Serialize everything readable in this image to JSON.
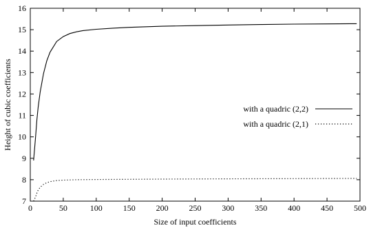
{
  "chart_data": {
    "type": "line",
    "title": "",
    "xlabel": "Size of input coefficients",
    "ylabel": "Height of cubic coefficients",
    "xlim": [
      0,
      500
    ],
    "ylim": [
      7,
      16
    ],
    "xticks": [
      0,
      50,
      100,
      150,
      200,
      250,
      300,
      350,
      400,
      450,
      500
    ],
    "yticks": [
      7,
      8,
      9,
      10,
      11,
      12,
      13,
      14,
      15,
      16
    ],
    "grid": false,
    "legend_position": "right",
    "series": [
      {
        "name": "with a quadric (2,2)",
        "style": "solid",
        "color": "#000000",
        "x": [
          5,
          8,
          10,
          12,
          15,
          20,
          25,
          30,
          40,
          50,
          60,
          70,
          80,
          100,
          125,
          150,
          200,
          250,
          300,
          350,
          400,
          450,
          495
        ],
        "y": [
          8.9,
          10.0,
          10.8,
          11.4,
          12.1,
          12.95,
          13.55,
          13.95,
          14.45,
          14.68,
          14.82,
          14.9,
          14.96,
          15.02,
          15.07,
          15.11,
          15.16,
          15.19,
          15.22,
          15.24,
          15.26,
          15.27,
          15.28
        ]
      },
      {
        "name": "with a quadric (2,1)",
        "style": "dotted",
        "color": "#000000",
        "x": [
          5,
          8,
          10,
          12,
          15,
          20,
          25,
          30,
          40,
          50,
          70,
          100,
          150,
          200,
          300,
          400,
          495
        ],
        "y": [
          7.0,
          7.2,
          7.38,
          7.52,
          7.65,
          7.78,
          7.86,
          7.91,
          7.96,
          7.98,
          8.0,
          8.01,
          8.02,
          8.03,
          8.04,
          8.05,
          8.06
        ]
      }
    ]
  }
}
